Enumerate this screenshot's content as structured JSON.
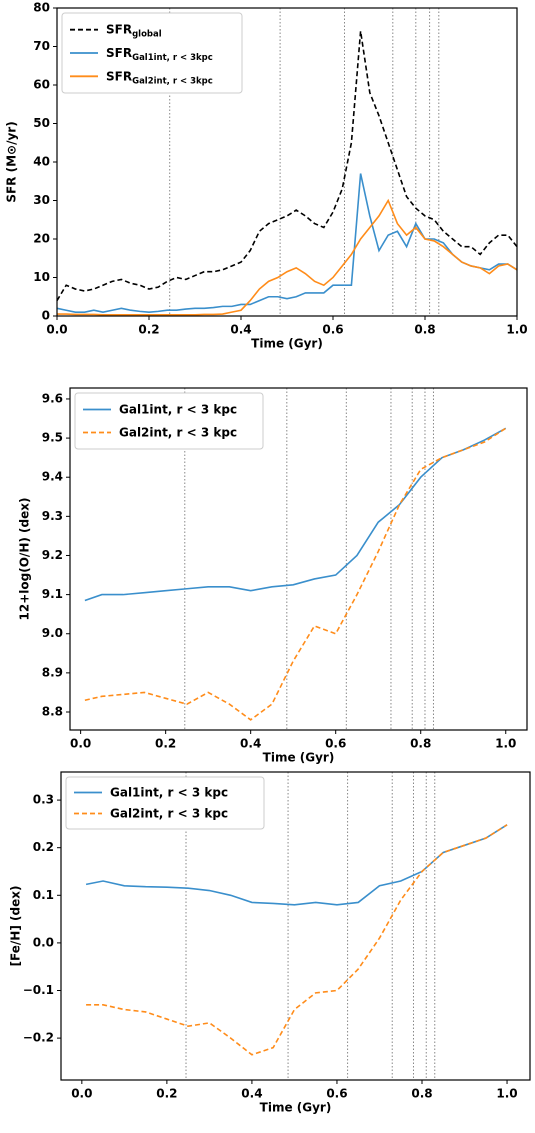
{
  "chart_data": [
    {
      "type": "line",
      "xlabel": "Time (Gyr)",
      "ylabel": "SFR (M⊙/yr)",
      "xlim": [
        0,
        1
      ],
      "ylim": [
        0,
        80
      ],
      "xticks": [
        {
          "value": 0,
          "label": "0.0"
        },
        0.2,
        0.4,
        0.6,
        0.8,
        {
          "value": 1,
          "label": "1.0"
        }
      ],
      "yticks": [
        0,
        10,
        20,
        30,
        40,
        50,
        60,
        70,
        80
      ],
      "vlines": [
        0.245,
        0.485,
        0.625,
        0.73,
        0.78,
        0.81,
        0.83
      ],
      "legend": "upper left",
      "x": [
        0,
        0.02,
        0.04,
        0.06,
        0.08,
        0.1,
        0.12,
        0.14,
        0.16,
        0.18,
        0.2,
        0.22,
        0.24,
        0.26,
        0.28,
        0.3,
        0.32,
        0.34,
        0.36,
        0.38,
        0.4,
        0.42,
        0.44,
        0.46,
        0.48,
        0.5,
        0.52,
        0.54,
        0.56,
        0.58,
        0.6,
        0.62,
        0.64,
        0.66,
        0.68,
        0.7,
        0.72,
        0.74,
        0.76,
        0.78,
        0.8,
        0.82,
        0.84,
        0.86,
        0.88,
        0.9,
        0.92,
        0.94,
        0.96,
        0.98,
        1
      ],
      "series": [
        {
          "name": "SFR",
          "subscript": "global",
          "color": "#000000",
          "linestyle": "dashed",
          "values": [
            4,
            8,
            7,
            6.5,
            7,
            8,
            9,
            9.5,
            8.5,
            8,
            7,
            7.5,
            9,
            10,
            9.5,
            10.5,
            11.5,
            11.5,
            12,
            13,
            14,
            17,
            22,
            24,
            25,
            26,
            27.5,
            26,
            24,
            23,
            27,
            33,
            45,
            74,
            58,
            52,
            45,
            38,
            31,
            28,
            26,
            25,
            22,
            20,
            18,
            18,
            16,
            19,
            21,
            21,
            18
          ]
        },
        {
          "name": "SFR",
          "subscript": "Gal1int, r < 3kpc",
          "color": "#3a8fcc",
          "linestyle": "solid",
          "values": [
            2,
            1.5,
            1,
            1,
            1.5,
            1,
            1.5,
            2,
            1.5,
            1.2,
            1,
            1.2,
            1.5,
            1.5,
            1.8,
            2,
            2,
            2.2,
            2.5,
            2.5,
            3,
            3,
            4,
            5,
            5,
            4.5,
            5,
            6,
            6,
            6,
            8,
            8,
            8,
            37,
            26,
            17,
            21,
            22,
            18,
            24,
            20,
            20,
            19,
            16,
            14,
            13,
            12.5,
            12,
            13.5,
            13.5,
            12
          ]
        },
        {
          "name": "SFR",
          "subscript": "Gal2int, r < 3kpc",
          "color": "#ff8c1a",
          "linestyle": "solid",
          "values": [
            0.5,
            0.5,
            0.4,
            0.4,
            0.4,
            0.3,
            0.3,
            0.3,
            0.3,
            0.3,
            0.3,
            0.3,
            0.3,
            0.3,
            0.3,
            0.3,
            0.4,
            0.4,
            0.5,
            1,
            1.5,
            4,
            7,
            9,
            10,
            11.5,
            12.5,
            11,
            9,
            8,
            10,
            13,
            16,
            20,
            23,
            26,
            30,
            24,
            21,
            23,
            20,
            19.5,
            18,
            16,
            14,
            13,
            12.5,
            11,
            13,
            13.5,
            12
          ]
        }
      ]
    },
    {
      "type": "line",
      "xlabel": "Time (Gyr)",
      "ylabel": "12+log(O/H) (dex)",
      "xlim": [
        -0.025,
        1.05
      ],
      "ylim": [
        8.754,
        9.628
      ],
      "xticks": [
        {
          "value": 0,
          "label": "0.0"
        },
        0.2,
        0.4,
        0.6,
        0.8,
        {
          "value": 1,
          "label": "1.0"
        }
      ],
      "yticks": [
        8.8,
        8.9,
        {
          "value": 9,
          "label": "9.0"
        },
        9.1,
        9.2,
        9.3,
        9.4,
        9.5,
        9.6
      ],
      "vlines": [
        0.245,
        0.485,
        0.625,
        0.73,
        0.78,
        0.81,
        0.83
      ],
      "legend": "upper left",
      "x": [
        0.01,
        0.05,
        0.1,
        0.15,
        0.2,
        0.25,
        0.3,
        0.35,
        0.4,
        0.45,
        0.5,
        0.55,
        0.6,
        0.65,
        0.7,
        0.75,
        0.8,
        0.85,
        0.9,
        0.95,
        1
      ],
      "series": [
        {
          "name": "Gal1int, r < 3 kpc",
          "color": "#3a8fcc",
          "linestyle": "solid",
          "values": [
            9.085,
            9.1,
            9.1,
            9.105,
            9.11,
            9.115,
            9.12,
            9.12,
            9.11,
            9.12,
            9.125,
            9.14,
            9.15,
            9.2,
            9.285,
            9.33,
            9.4,
            9.45,
            9.47,
            9.495,
            9.525
          ]
        },
        {
          "name": "Gal2int, r < 3 kpc",
          "color": "#ff8c1a",
          "linestyle": "dashed",
          "values": [
            8.83,
            8.84,
            8.845,
            8.85,
            8.835,
            8.82,
            8.85,
            8.82,
            8.78,
            8.82,
            8.93,
            9.02,
            9,
            9.1,
            9.21,
            9.33,
            9.42,
            9.45,
            9.47,
            9.49,
            9.525
          ]
        }
      ]
    },
    {
      "type": "line",
      "xlabel": "Time (Gyr)",
      "ylabel": "[Fe/H] (dex)",
      "xlim": [
        -0.049,
        1.054
      ],
      "ylim": [
        -0.288,
        0.359
      ],
      "xticks": [
        {
          "value": 0,
          "label": "0.0"
        },
        0.2,
        0.4,
        0.6,
        0.8,
        {
          "value": 1,
          "label": "1.0"
        }
      ],
      "yticks": [
        {
          "value": -0.2,
          "label": "−0.2"
        },
        {
          "value": -0.1,
          "label": "−0.1"
        },
        {
          "value": 0,
          "label": "0.0"
        },
        0.1,
        0.2,
        0.3
      ],
      "vlines": [
        0.245,
        0.485,
        0.625,
        0.73,
        0.78,
        0.81,
        0.83
      ],
      "legend": "upper left",
      "x": [
        0.01,
        0.05,
        0.1,
        0.15,
        0.2,
        0.25,
        0.3,
        0.35,
        0.4,
        0.45,
        0.5,
        0.55,
        0.6,
        0.65,
        0.7,
        0.75,
        0.8,
        0.85,
        0.9,
        0.95,
        1
      ],
      "series": [
        {
          "name": "Gal1int, r < 3 kpc",
          "color": "#3a8fcc",
          "linestyle": "solid",
          "values": [
            0.123,
            0.13,
            0.12,
            0.118,
            0.117,
            0.115,
            0.11,
            0.1,
            0.085,
            0.083,
            0.08,
            0.085,
            0.08,
            0.085,
            0.12,
            0.13,
            0.15,
            0.19,
            0.205,
            0.22,
            0.248
          ]
        },
        {
          "name": "Gal2int, r < 3 kpc",
          "color": "#ff8c1a",
          "linestyle": "dashed",
          "values": [
            -0.13,
            -0.13,
            -0.14,
            -0.145,
            -0.16,
            -0.175,
            -0.168,
            -0.2,
            -0.235,
            -0.22,
            -0.14,
            -0.105,
            -0.1,
            -0.055,
            0.01,
            0.09,
            0.15,
            0.19,
            0.205,
            0.22,
            0.248
          ]
        }
      ]
    }
  ]
}
